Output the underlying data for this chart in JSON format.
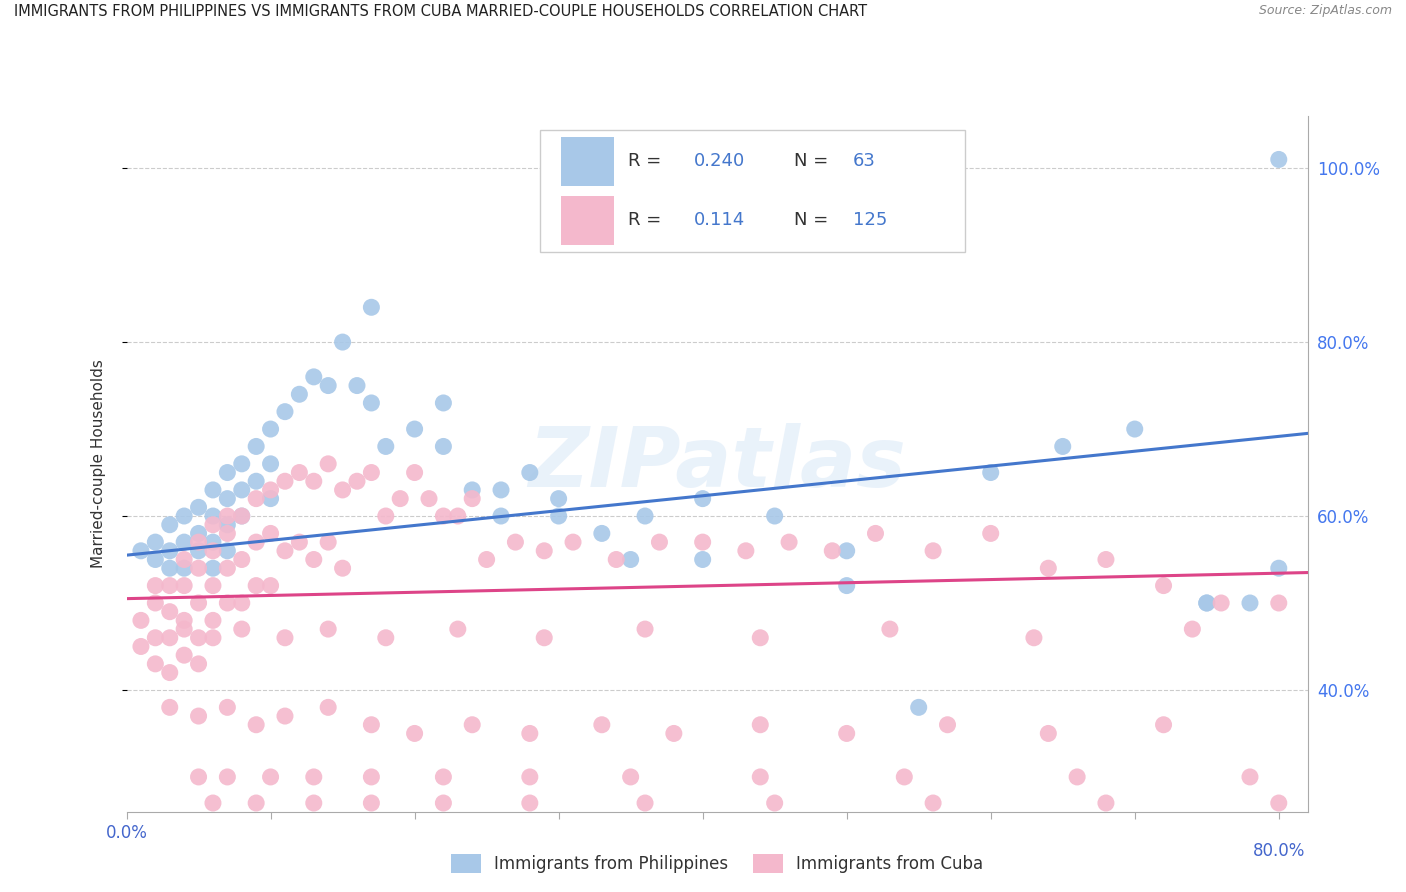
{
  "title": "IMMIGRANTS FROM PHILIPPINES VS IMMIGRANTS FROM CUBA MARRIED-COUPLE HOUSEHOLDS CORRELATION CHART",
  "source": "Source: ZipAtlas.com",
  "ylabel": "Married-couple Households",
  "yticks_labels": [
    "40.0%",
    "60.0%",
    "80.0%",
    "100.0%"
  ],
  "ytick_vals": [
    0.4,
    0.6,
    0.8,
    1.0
  ],
  "xlim": [
    0.0,
    0.82
  ],
  "ylim": [
    0.26,
    1.06
  ],
  "color_phil": "#a8c8e8",
  "color_cuba": "#f4b8cc",
  "color_line_phil": "#4477cc",
  "color_line_cuba": "#dd4488",
  "watermark": "ZIPatlas",
  "phil_line_x": [
    0.0,
    0.82
  ],
  "phil_line_y": [
    0.555,
    0.695
  ],
  "cuba_line_x": [
    0.0,
    0.82
  ],
  "cuba_line_y": [
    0.505,
    0.535
  ],
  "phil_scatter_x": [
    0.01,
    0.02,
    0.02,
    0.03,
    0.03,
    0.03,
    0.04,
    0.04,
    0.04,
    0.05,
    0.05,
    0.05,
    0.06,
    0.06,
    0.06,
    0.06,
    0.07,
    0.07,
    0.07,
    0.07,
    0.08,
    0.08,
    0.08,
    0.09,
    0.09,
    0.1,
    0.1,
    0.1,
    0.11,
    0.12,
    0.13,
    0.14,
    0.15,
    0.16,
    0.17,
    0.18,
    0.2,
    0.22,
    0.24,
    0.26,
    0.28,
    0.3,
    0.33,
    0.36,
    0.4,
    0.45,
    0.5,
    0.55,
    0.6,
    0.65,
    0.7,
    0.75,
    0.78,
    0.8,
    0.17,
    0.22,
    0.26,
    0.3,
    0.35,
    0.4,
    0.5,
    0.75,
    0.8
  ],
  "phil_scatter_y": [
    0.56,
    0.57,
    0.55,
    0.59,
    0.56,
    0.54,
    0.6,
    0.57,
    0.54,
    0.61,
    0.58,
    0.56,
    0.63,
    0.6,
    0.57,
    0.54,
    0.65,
    0.62,
    0.59,
    0.56,
    0.66,
    0.63,
    0.6,
    0.68,
    0.64,
    0.7,
    0.66,
    0.62,
    0.72,
    0.74,
    0.76,
    0.75,
    0.8,
    0.75,
    0.73,
    0.68,
    0.7,
    0.68,
    0.63,
    0.6,
    0.65,
    0.62,
    0.58,
    0.6,
    0.62,
    0.6,
    0.56,
    0.38,
    0.65,
    0.68,
    0.7,
    0.5,
    0.5,
    1.01,
    0.84,
    0.73,
    0.63,
    0.6,
    0.55,
    0.55,
    0.52,
    0.5,
    0.54
  ],
  "cuba_scatter_x": [
    0.01,
    0.01,
    0.02,
    0.02,
    0.02,
    0.02,
    0.03,
    0.03,
    0.03,
    0.03,
    0.04,
    0.04,
    0.04,
    0.04,
    0.05,
    0.05,
    0.05,
    0.05,
    0.05,
    0.06,
    0.06,
    0.06,
    0.06,
    0.07,
    0.07,
    0.07,
    0.07,
    0.08,
    0.08,
    0.08,
    0.09,
    0.09,
    0.09,
    0.1,
    0.1,
    0.1,
    0.11,
    0.11,
    0.12,
    0.12,
    0.13,
    0.13,
    0.14,
    0.14,
    0.15,
    0.15,
    0.16,
    0.17,
    0.18,
    0.19,
    0.2,
    0.21,
    0.22,
    0.23,
    0.24,
    0.25,
    0.27,
    0.29,
    0.31,
    0.34,
    0.37,
    0.4,
    0.43,
    0.46,
    0.49,
    0.52,
    0.56,
    0.6,
    0.64,
    0.68,
    0.72,
    0.76,
    0.8,
    0.03,
    0.05,
    0.07,
    0.09,
    0.11,
    0.14,
    0.17,
    0.2,
    0.24,
    0.28,
    0.33,
    0.38,
    0.44,
    0.5,
    0.57,
    0.64,
    0.72,
    0.04,
    0.06,
    0.08,
    0.11,
    0.14,
    0.18,
    0.23,
    0.29,
    0.36,
    0.44,
    0.53,
    0.63,
    0.74,
    0.05,
    0.07,
    0.1,
    0.13,
    0.17,
    0.22,
    0.28,
    0.35,
    0.44,
    0.54,
    0.66,
    0.78,
    0.06,
    0.09,
    0.13,
    0.17,
    0.22,
    0.28,
    0.36,
    0.45,
    0.56,
    0.68,
    0.8
  ],
  "cuba_scatter_y": [
    0.48,
    0.45,
    0.5,
    0.46,
    0.52,
    0.43,
    0.49,
    0.46,
    0.52,
    0.42,
    0.52,
    0.48,
    0.55,
    0.44,
    0.54,
    0.5,
    0.57,
    0.46,
    0.43,
    0.56,
    0.52,
    0.59,
    0.48,
    0.58,
    0.54,
    0.6,
    0.5,
    0.6,
    0.55,
    0.5,
    0.62,
    0.57,
    0.52,
    0.63,
    0.58,
    0.52,
    0.64,
    0.56,
    0.65,
    0.57,
    0.64,
    0.55,
    0.66,
    0.57,
    0.63,
    0.54,
    0.64,
    0.65,
    0.6,
    0.62,
    0.65,
    0.62,
    0.6,
    0.6,
    0.62,
    0.55,
    0.57,
    0.56,
    0.57,
    0.55,
    0.57,
    0.57,
    0.56,
    0.57,
    0.56,
    0.58,
    0.56,
    0.58,
    0.54,
    0.55,
    0.52,
    0.5,
    0.5,
    0.38,
    0.37,
    0.38,
    0.36,
    0.37,
    0.38,
    0.36,
    0.35,
    0.36,
    0.35,
    0.36,
    0.35,
    0.36,
    0.35,
    0.36,
    0.35,
    0.36,
    0.47,
    0.46,
    0.47,
    0.46,
    0.47,
    0.46,
    0.47,
    0.46,
    0.47,
    0.46,
    0.47,
    0.46,
    0.47,
    0.3,
    0.3,
    0.3,
    0.3,
    0.3,
    0.3,
    0.3,
    0.3,
    0.3,
    0.3,
    0.3,
    0.3,
    0.27,
    0.27,
    0.27,
    0.27,
    0.27,
    0.27,
    0.27,
    0.27,
    0.27,
    0.27,
    0.27
  ]
}
